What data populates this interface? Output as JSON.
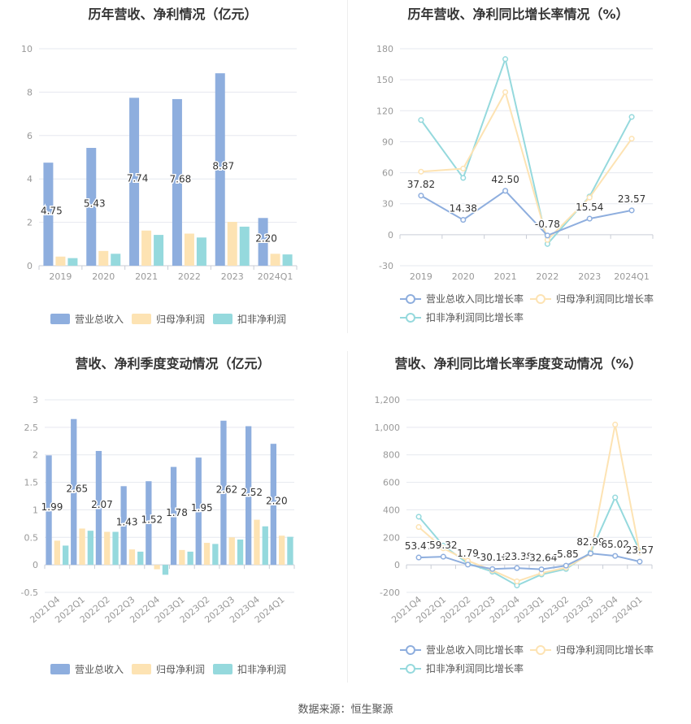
{
  "footer": {
    "source": "数据来源：恒生聚源"
  },
  "colors": {
    "revenue": "#8eaede",
    "parent_profit": "#fde3b3",
    "deducted_profit": "#95d9dd",
    "grid": "#e6e8ef",
    "axis_text": "#999999"
  },
  "chart_data": [
    {
      "id": "annual_amounts",
      "type": "bar",
      "title": "历年营收、净利情况（亿元）",
      "categories": [
        "2019",
        "2020",
        "2021",
        "2022",
        "2023",
        "2024Q1"
      ],
      "ylim": [
        0,
        10
      ],
      "yticks": [
        0,
        2,
        4,
        6,
        8,
        10
      ],
      "ytick_labels": [
        "0",
        "2",
        "4",
        "6",
        "8",
        "10"
      ],
      "series": [
        {
          "name": "营业总收入",
          "values": [
            4.75,
            5.43,
            7.74,
            7.68,
            8.87,
            2.2
          ],
          "labels": [
            "4.75",
            "5.43",
            "7.74",
            "7.68",
            "8.87",
            "2.20"
          ]
        },
        {
          "name": "归母净利润",
          "values": [
            0.42,
            0.68,
            1.62,
            1.48,
            2.02,
            0.55
          ]
        },
        {
          "name": "扣非净利润",
          "values": [
            0.35,
            0.55,
            1.42,
            1.3,
            1.8,
            0.52
          ]
        }
      ],
      "legend": "bottom",
      "grid": true
    },
    {
      "id": "annual_growth",
      "type": "line",
      "title": "历年营收、净利同比增长率情况（%）",
      "categories": [
        "2019",
        "2020",
        "2021",
        "2022",
        "2023",
        "2024Q1"
      ],
      "ylim": [
        -30,
        180
      ],
      "yticks": [
        -30,
        0,
        30,
        60,
        90,
        120,
        150,
        180
      ],
      "ytick_labels": [
        "-30",
        "0",
        "30",
        "60",
        "90",
        "120",
        "150",
        "180"
      ],
      "series": [
        {
          "name": "营业总收入同比增长率",
          "values": [
            37.82,
            14.38,
            42.5,
            -0.78,
            15.54,
            23.57
          ],
          "labels": [
            "37.82",
            "14.38",
            "42.50",
            "-0.78",
            "15.54",
            "23.57"
          ]
        },
        {
          "name": "归母净利润同比增长率",
          "values": [
            61,
            64,
            138,
            -5,
            36,
            93
          ]
        },
        {
          "name": "扣非净利润同比增长率",
          "values": [
            111,
            55,
            170,
            -9,
            37,
            114
          ]
        }
      ],
      "legend": "bottom",
      "grid": true
    },
    {
      "id": "quarterly_amounts",
      "type": "bar",
      "title": "营收、净利季度变动情况（亿元）",
      "categories": [
        "2021Q4",
        "2022Q1",
        "2022Q2",
        "2022Q3",
        "2022Q4",
        "2023Q1",
        "2023Q2",
        "2023Q3",
        "2023Q4",
        "2024Q1"
      ],
      "ylim": [
        -0.5,
        3
      ],
      "yticks": [
        -0.5,
        0,
        0.5,
        1,
        1.5,
        2,
        2.5,
        3
      ],
      "ytick_labels": [
        "-0.5",
        "0",
        "0.5",
        "1",
        "1.5",
        "2",
        "2.5",
        "3"
      ],
      "series": [
        {
          "name": "营业总收入",
          "values": [
            1.99,
            2.65,
            2.07,
            1.43,
            1.52,
            1.78,
            1.95,
            2.62,
            2.52,
            2.2
          ],
          "labels": [
            "1.99",
            "2.65",
            "2.07",
            "1.43",
            "1.52",
            "1.78",
            "1.95",
            "2.62",
            "2.52",
            "2.20"
          ]
        },
        {
          "name": "归母净利润",
          "values": [
            0.44,
            0.66,
            0.6,
            0.28,
            -0.08,
            0.27,
            0.4,
            0.5,
            0.82,
            0.53
          ]
        },
        {
          "name": "扣非净利润",
          "values": [
            0.35,
            0.62,
            0.6,
            0.24,
            -0.18,
            0.24,
            0.38,
            0.46,
            0.7,
            0.51
          ]
        }
      ],
      "legend": "bottom",
      "grid": true
    },
    {
      "id": "quarterly_growth",
      "type": "line",
      "title": "营收、净利同比增长率季度变动情况（%）",
      "categories": [
        "2021Q4",
        "2022Q1",
        "2022Q2",
        "2022Q3",
        "2022Q4",
        "2023Q1",
        "2023Q2",
        "2023Q3",
        "2023Q4",
        "2024Q1"
      ],
      "ylim": [
        -200,
        1200
      ],
      "yticks": [
        -200,
        0,
        200,
        400,
        600,
        800,
        1000,
        1200
      ],
      "ytick_labels": [
        "-200",
        "0",
        "200",
        "400",
        "600",
        "800",
        "1,000",
        "1,200"
      ],
      "series": [
        {
          "name": "营业总收入同比增长率",
          "values": [
            53.47,
            59.32,
            1.79,
            -30.16,
            -23.38,
            -32.64,
            -5.85,
            82.99,
            65.02,
            23.57
          ],
          "labels": [
            "53.47",
            "59.32",
            "1.79",
            "-30.16",
            "-23.38",
            "-32.64",
            "-5.85",
            "82.99",
            "65.02",
            "23.57"
          ]
        },
        {
          "name": "归母净利润同比增长率",
          "values": [
            275,
            120,
            30,
            -40,
            -120,
            -60,
            -20,
            80,
            1020,
            90
          ]
        },
        {
          "name": "扣非净利润同比增长率",
          "values": [
            350,
            140,
            10,
            -50,
            -150,
            -70,
            -30,
            90,
            490,
            100
          ]
        }
      ],
      "legend": "bottom",
      "grid": true
    }
  ]
}
